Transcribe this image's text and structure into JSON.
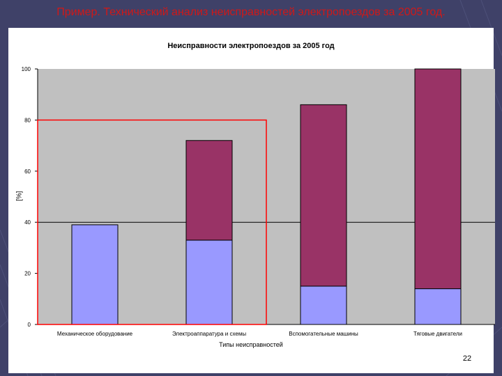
{
  "slide": {
    "title": "Пример. Технический анализ неисправностей электропоездов за 2005 год.",
    "page_number": "22"
  },
  "colors": {
    "background": "#3f4168",
    "title": "#d01818",
    "plot_area": "#c0c0c0",
    "series_bottom": "#9999ff",
    "series_top": "#993366",
    "highlight_box": "#ff0000"
  },
  "chart_data": {
    "type": "bar",
    "stacked": true,
    "title": "Неисправности электропоездов за 2005 год",
    "xlabel": "Типы неисправностей",
    "ylabel": "[%]",
    "categories": [
      "Механическое оборудование",
      "Электроаппаратура и схемы",
      "Вспомогательные машины",
      "Тяговые двигатели"
    ],
    "series": [
      {
        "values": [
          39,
          33,
          15,
          14
        ],
        "color": "#9999ff"
      },
      {
        "values": [
          0,
          39,
          71,
          86
        ],
        "color": "#993366"
      }
    ],
    "ylim": [
      0,
      100
    ],
    "yticks": [
      0,
      20,
      40,
      60,
      80,
      100
    ],
    "reference_line": 40,
    "highlight_range": {
      "y_top": 80,
      "categories": [
        0,
        1
      ]
    },
    "grid": false,
    "legend": "none"
  }
}
